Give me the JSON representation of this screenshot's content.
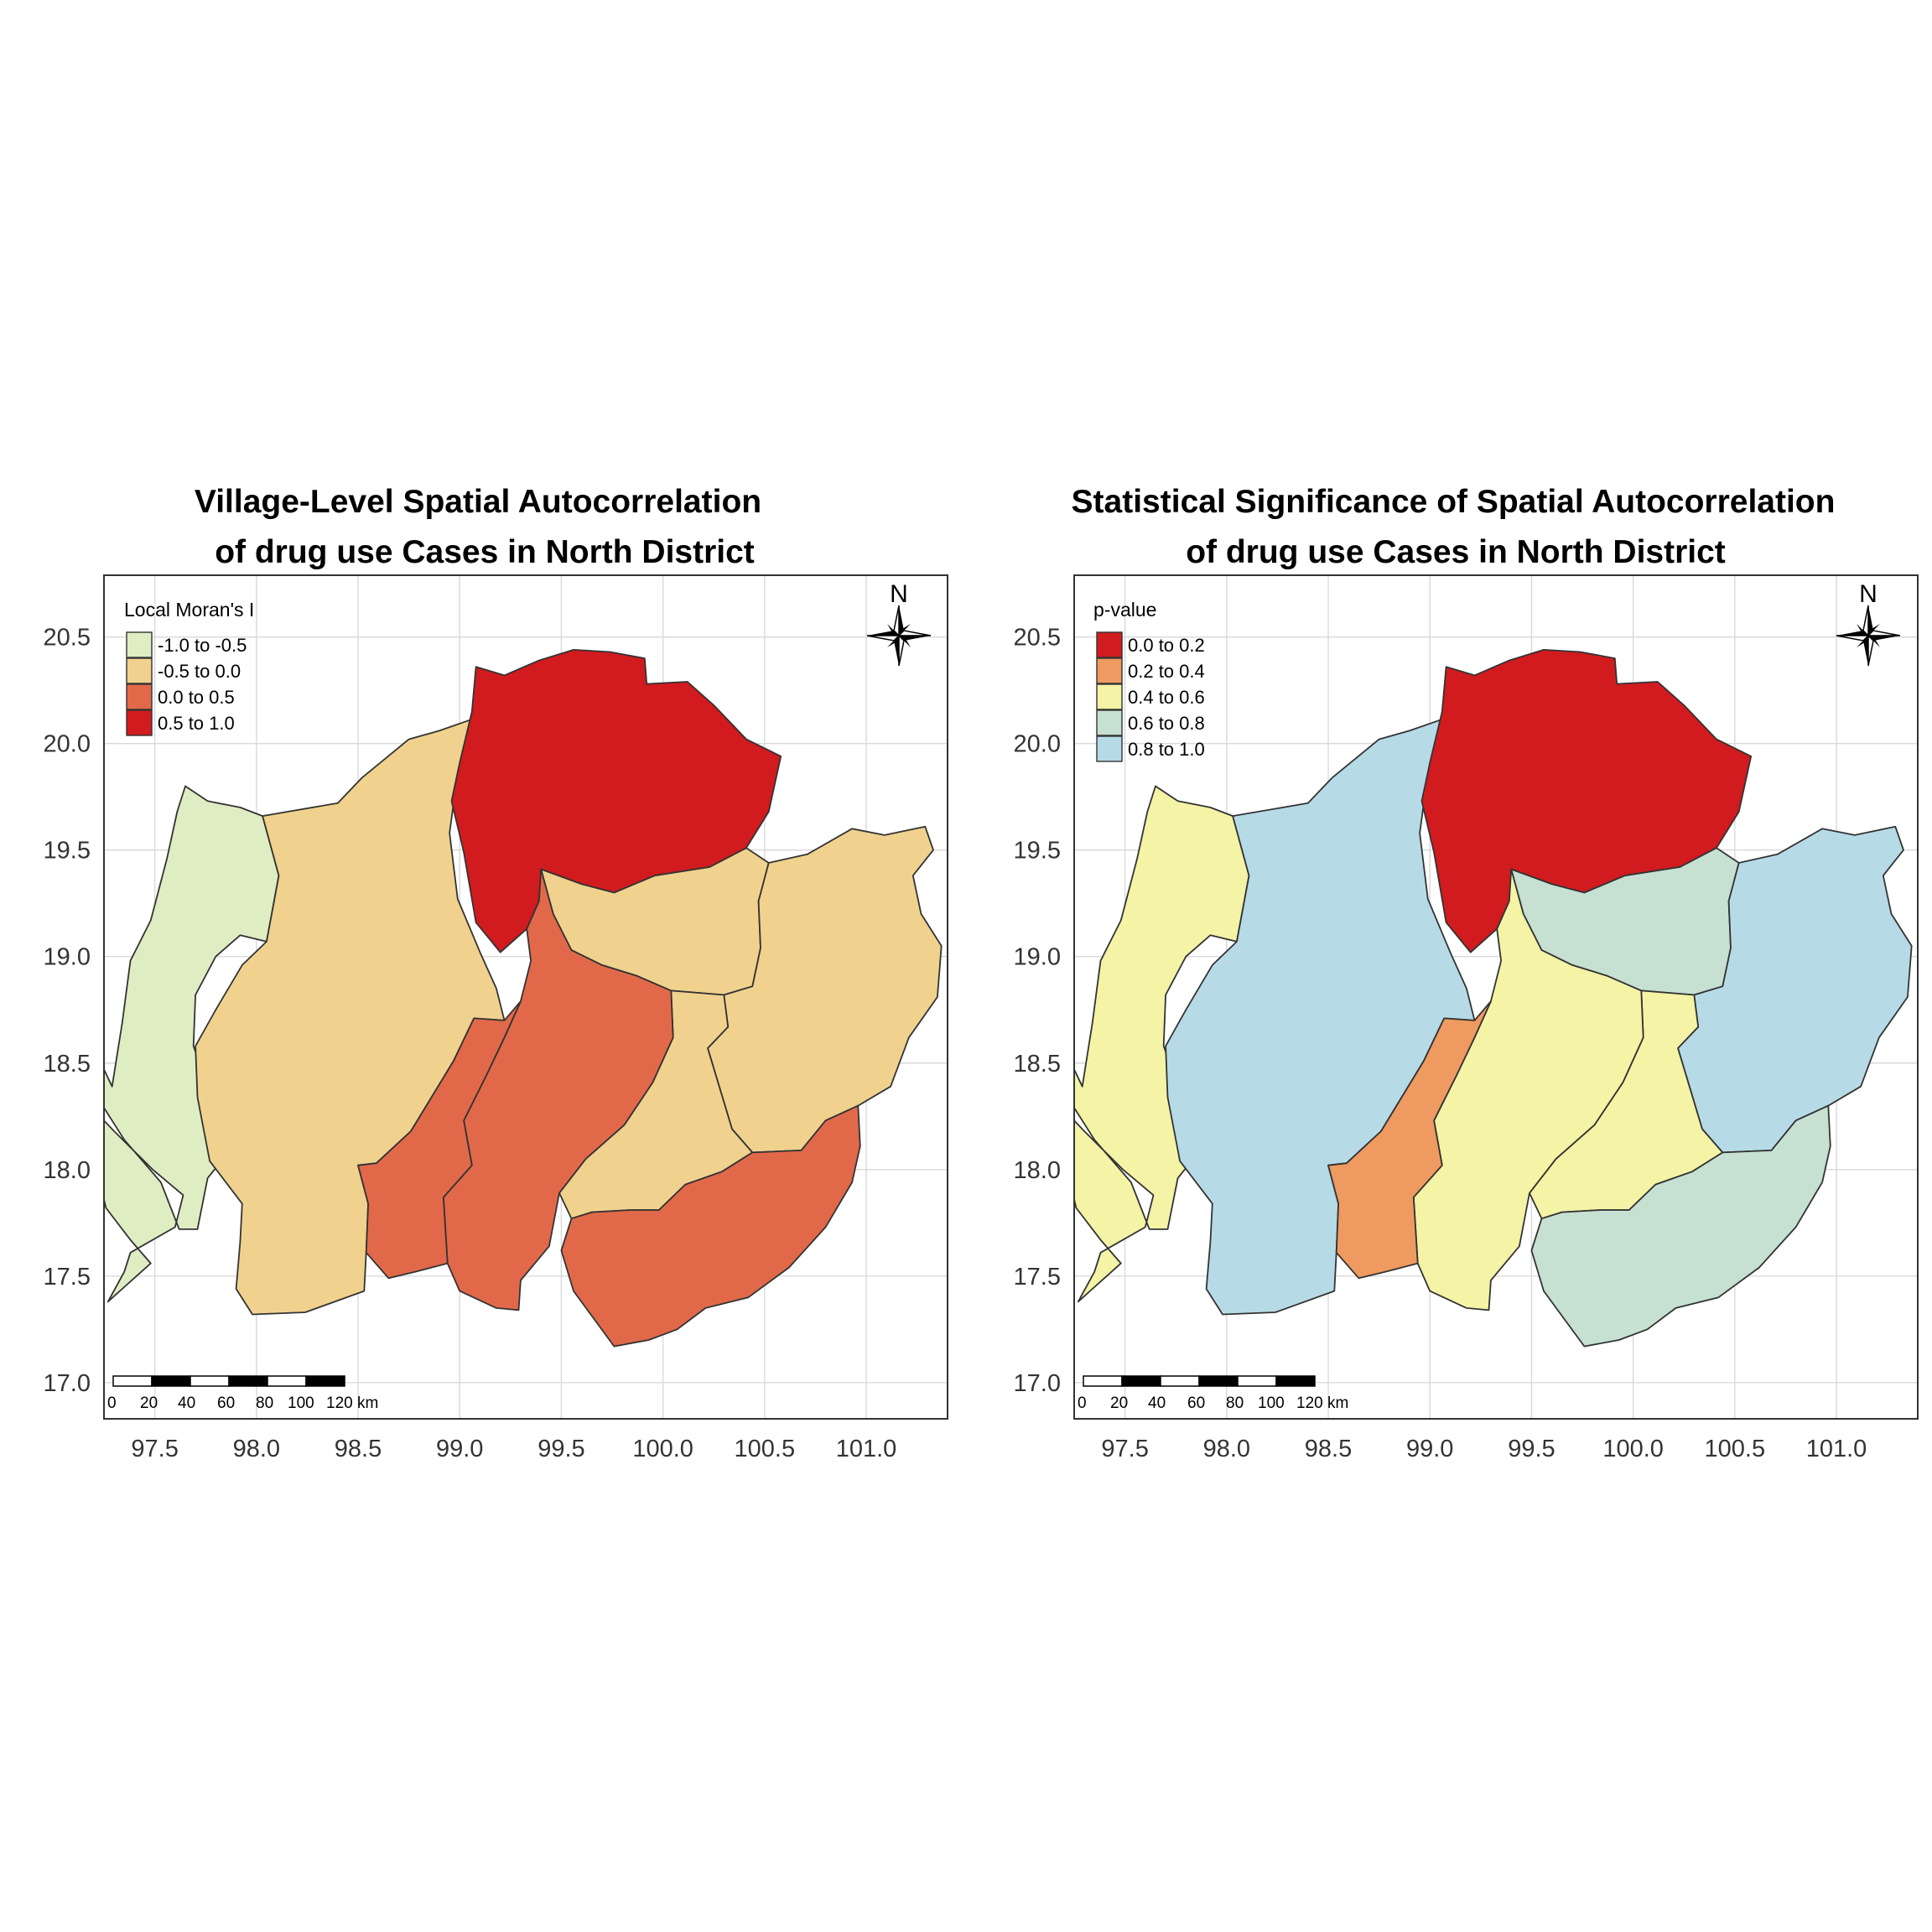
{
  "maps": [
    {
      "title_line1": "Village-Level Spatial Autocorrelation",
      "title_line2": "of drug use Cases in North District",
      "legend": {
        "title": "Local Moran's I",
        "classes": [
          {
            "label": "-1.0 to -0.5",
            "color": "#dfedc3"
          },
          {
            "label": "-0.5 to 0.0",
            "color": "#f0d28e"
          },
          {
            "label": "0.0 to 0.5",
            "color": "#e1694a"
          },
          {
            "label": "0.5 to 1.0",
            "color": "#d11b1f"
          }
        ]
      },
      "region_class": {
        "west": 0,
        "west_central": 1,
        "north": 3,
        "northeast_central": 1,
        "east": 1,
        "central_east": 1,
        "central": 2,
        "southwest_central": 2,
        "south": 2
      }
    },
    {
      "title_line1": "Statistical Significance of Spatial Autocorrelation",
      "title_line2": "of drug use Cases in North District",
      "legend": {
        "title": "p-value",
        "classes": [
          {
            "label": "0.0 to 0.2",
            "color": "#d11b1f"
          },
          {
            "label": "0.2 to 0.4",
            "color": "#ee9a60"
          },
          {
            "label": "0.4 to 0.6",
            "color": "#f4f3a6"
          },
          {
            "label": "0.6 to 0.8",
            "color": "#c6e0d1"
          },
          {
            "label": "0.8 to 1.0",
            "color": "#b6dbe7"
          }
        ]
      },
      "region_class": {
        "west": 2,
        "west_central": 4,
        "north": 0,
        "northeast_central": 3,
        "east": 4,
        "central_east": 2,
        "central": 2,
        "southwest_central": 1,
        "south": 3
      }
    }
  ],
  "x_ticks": [
    "97.5",
    "98.0",
    "98.5",
    "99.0",
    "99.5",
    "100.0",
    "100.5",
    "101.0"
  ],
  "y_ticks": [
    "20.5",
    "20.0",
    "19.5",
    "19.0",
    "18.5",
    "18.0",
    "17.5",
    "17.0"
  ],
  "x_range": [
    97.25,
    101.4
  ],
  "y_range": [
    16.83,
    20.79
  ],
  "north_arrow_label": "N",
  "scale_bar": {
    "labels": [
      "0",
      "20",
      "40",
      "60",
      "80",
      "100",
      "120 km"
    ]
  },
  "regions": {
    "west": [
      [
        97.65,
        19.8
      ],
      [
        97.76,
        19.73
      ],
      [
        97.92,
        19.7
      ],
      [
        98.03,
        19.66
      ],
      [
        98.11,
        19.38
      ],
      [
        98.05,
        19.07
      ],
      [
        97.92,
        19.1
      ],
      [
        97.8,
        19.0
      ],
      [
        97.7,
        18.82
      ],
      [
        97.69,
        18.58
      ],
      [
        97.78,
        18.34
      ],
      [
        97.93,
        18.16
      ],
      [
        97.76,
        17.96
      ],
      [
        97.71,
        17.72
      ],
      [
        97.62,
        17.72
      ],
      [
        97.53,
        17.94
      ],
      [
        97.35,
        18.14
      ],
      [
        97.23,
        18.32
      ],
      [
        97.19,
        18.52
      ],
      [
        97.09,
        18.6
      ],
      [
        97.0,
        18.55
      ],
      [
        96.95,
        18.42
      ],
      [
        97.04,
        18.27
      ],
      [
        97.2,
        18.06
      ],
      [
        97.26,
        17.82
      ],
      [
        97.38,
        17.67
      ],
      [
        97.48,
        17.56
      ],
      [
        97.34,
        17.44
      ],
      [
        97.27,
        17.38
      ],
      [
        97.35,
        17.52
      ],
      [
        97.38,
        17.61
      ],
      [
        97.6,
        17.73
      ],
      [
        97.64,
        17.88
      ],
      [
        97.49,
        18.0
      ],
      [
        97.3,
        18.18
      ],
      [
        97.15,
        18.33
      ],
      [
        97.05,
        18.45
      ],
      [
        97.12,
        18.57
      ],
      [
        97.22,
        18.53
      ],
      [
        97.29,
        18.39
      ],
      [
        97.34,
        18.69
      ],
      [
        97.38,
        18.98
      ],
      [
        97.48,
        19.17
      ],
      [
        97.56,
        19.46
      ],
      [
        97.61,
        19.68
      ]
    ],
    "west_central": [
      [
        98.03,
        19.66
      ],
      [
        98.4,
        19.72
      ],
      [
        98.52,
        19.84
      ],
      [
        98.75,
        20.02
      ],
      [
        98.9,
        20.06
      ],
      [
        99.05,
        20.11
      ],
      [
        99.07,
        19.93
      ],
      [
        98.98,
        19.79
      ],
      [
        98.95,
        19.58
      ],
      [
        98.99,
        19.27
      ],
      [
        99.1,
        19.02
      ],
      [
        99.18,
        18.85
      ],
      [
        99.22,
        18.7
      ],
      [
        99.07,
        18.71
      ],
      [
        98.97,
        18.51
      ],
      [
        98.76,
        18.18
      ],
      [
        98.59,
        18.03
      ],
      [
        98.5,
        18.02
      ],
      [
        98.55,
        17.84
      ],
      [
        98.54,
        17.61
      ],
      [
        98.53,
        17.43
      ],
      [
        98.24,
        17.33
      ],
      [
        97.98,
        17.32
      ],
      [
        97.9,
        17.44
      ],
      [
        97.92,
        17.66
      ],
      [
        97.93,
        17.84
      ],
      [
        97.77,
        18.04
      ],
      [
        97.71,
        18.34
      ],
      [
        97.7,
        18.58
      ],
      [
        97.8,
        18.75
      ],
      [
        97.93,
        18.96
      ],
      [
        98.05,
        19.07
      ],
      [
        98.11,
        19.38
      ]
    ],
    "north": [
      [
        99.08,
        20.36
      ],
      [
        99.22,
        20.32
      ],
      [
        99.39,
        20.39
      ],
      [
        99.56,
        20.44
      ],
      [
        99.74,
        20.43
      ],
      [
        99.91,
        20.4
      ],
      [
        99.92,
        20.28
      ],
      [
        100.12,
        20.29
      ],
      [
        100.25,
        20.18
      ],
      [
        100.41,
        20.02
      ],
      [
        100.58,
        19.94
      ],
      [
        100.52,
        19.68
      ],
      [
        100.41,
        19.51
      ],
      [
        100.23,
        19.42
      ],
      [
        99.96,
        19.38
      ],
      [
        99.76,
        19.3
      ],
      [
        99.6,
        19.34
      ],
      [
        99.4,
        19.41
      ],
      [
        99.39,
        19.26
      ],
      [
        99.33,
        19.13
      ],
      [
        99.2,
        19.02
      ],
      [
        99.08,
        19.16
      ],
      [
        99.02,
        19.49
      ],
      [
        98.96,
        19.73
      ],
      [
        99.0,
        19.91
      ],
      [
        99.06,
        20.15
      ]
    ],
    "northeast_central": [
      [
        99.4,
        19.41
      ],
      [
        99.6,
        19.34
      ],
      [
        99.76,
        19.3
      ],
      [
        99.96,
        19.38
      ],
      [
        100.23,
        19.42
      ],
      [
        100.41,
        19.51
      ],
      [
        100.52,
        19.44
      ],
      [
        100.47,
        19.26
      ],
      [
        100.48,
        19.04
      ],
      [
        100.44,
        18.86
      ],
      [
        100.3,
        18.82
      ],
      [
        100.04,
        18.84
      ],
      [
        99.87,
        18.91
      ],
      [
        99.7,
        18.96
      ],
      [
        99.55,
        19.03
      ],
      [
        99.46,
        19.2
      ]
    ],
    "east": [
      [
        100.52,
        19.44
      ],
      [
        100.71,
        19.48
      ],
      [
        100.93,
        19.6
      ],
      [
        101.09,
        19.57
      ],
      [
        101.29,
        19.61
      ],
      [
        101.33,
        19.5
      ],
      [
        101.23,
        19.38
      ],
      [
        101.27,
        19.2
      ],
      [
        101.37,
        19.05
      ],
      [
        101.35,
        18.81
      ],
      [
        101.21,
        18.62
      ],
      [
        101.12,
        18.39
      ],
      [
        100.96,
        18.3
      ],
      [
        100.8,
        18.23
      ],
      [
        100.68,
        18.09
      ],
      [
        100.44,
        18.08
      ],
      [
        100.34,
        18.19
      ],
      [
        100.28,
        18.38
      ],
      [
        100.22,
        18.57
      ],
      [
        100.32,
        18.67
      ],
      [
        100.3,
        18.82
      ],
      [
        100.44,
        18.86
      ],
      [
        100.48,
        19.04
      ],
      [
        100.47,
        19.26
      ]
    ],
    "central_east": [
      [
        100.3,
        18.82
      ],
      [
        100.04,
        18.84
      ],
      [
        100.05,
        18.62
      ],
      [
        99.95,
        18.41
      ],
      [
        99.81,
        18.21
      ],
      [
        99.62,
        18.05
      ],
      [
        99.49,
        17.89
      ],
      [
        99.55,
        17.77
      ],
      [
        99.65,
        17.8
      ],
      [
        99.84,
        17.81
      ],
      [
        99.98,
        17.81
      ],
      [
        100.11,
        17.93
      ],
      [
        100.29,
        17.99
      ],
      [
        100.44,
        18.08
      ],
      [
        100.34,
        18.19
      ],
      [
        100.28,
        18.38
      ],
      [
        100.22,
        18.57
      ],
      [
        100.32,
        18.67
      ]
    ],
    "central": [
      [
        99.39,
        19.26
      ],
      [
        99.4,
        19.41
      ],
      [
        99.46,
        19.2
      ],
      [
        99.55,
        19.03
      ],
      [
        99.7,
        18.96
      ],
      [
        99.87,
        18.91
      ],
      [
        100.04,
        18.84
      ],
      [
        100.05,
        18.62
      ],
      [
        99.95,
        18.41
      ],
      [
        99.81,
        18.21
      ],
      [
        99.62,
        18.05
      ],
      [
        99.49,
        17.89
      ],
      [
        99.44,
        17.64
      ],
      [
        99.3,
        17.48
      ],
      [
        99.29,
        17.34
      ],
      [
        99.18,
        17.35
      ],
      [
        99.0,
        17.43
      ],
      [
        98.94,
        17.56
      ],
      [
        98.92,
        17.87
      ],
      [
        99.06,
        18.02
      ],
      [
        99.02,
        18.23
      ],
      [
        99.13,
        18.44
      ],
      [
        99.22,
        18.62
      ],
      [
        99.3,
        18.79
      ],
      [
        99.35,
        18.98
      ],
      [
        99.33,
        19.13
      ]
    ],
    "southwest_central": [
      [
        98.59,
        18.03
      ],
      [
        98.76,
        18.18
      ],
      [
        98.97,
        18.51
      ],
      [
        99.07,
        18.71
      ],
      [
        99.22,
        18.7
      ],
      [
        99.3,
        18.79
      ],
      [
        99.22,
        18.62
      ],
      [
        99.13,
        18.44
      ],
      [
        99.02,
        18.23
      ],
      [
        99.06,
        18.02
      ],
      [
        98.92,
        17.87
      ],
      [
        98.94,
        17.56
      ],
      [
        98.78,
        17.52
      ],
      [
        98.65,
        17.49
      ],
      [
        98.54,
        17.61
      ],
      [
        98.55,
        17.84
      ],
      [
        98.5,
        18.02
      ]
    ],
    "south": [
      [
        99.65,
        17.8
      ],
      [
        99.84,
        17.81
      ],
      [
        99.98,
        17.81
      ],
      [
        100.11,
        17.93
      ],
      [
        100.29,
        17.99
      ],
      [
        100.44,
        18.08
      ],
      [
        100.68,
        18.09
      ],
      [
        100.8,
        18.23
      ],
      [
        100.96,
        18.3
      ],
      [
        100.97,
        18.11
      ],
      [
        100.93,
        17.94
      ],
      [
        100.8,
        17.73
      ],
      [
        100.62,
        17.54
      ],
      [
        100.42,
        17.4
      ],
      [
        100.21,
        17.35
      ],
      [
        100.07,
        17.25
      ],
      [
        99.93,
        17.2
      ],
      [
        99.76,
        17.17
      ],
      [
        99.66,
        17.3
      ],
      [
        99.56,
        17.43
      ],
      [
        99.5,
        17.62
      ],
      [
        99.55,
        17.77
      ]
    ]
  }
}
